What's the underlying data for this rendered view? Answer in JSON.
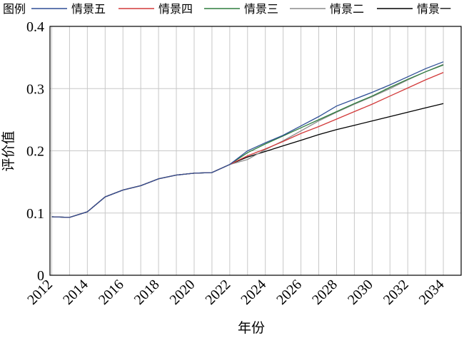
{
  "chart_data": {
    "type": "line",
    "x": [
      2012,
      2013,
      2014,
      2015,
      2016,
      2017,
      2018,
      2019,
      2020,
      2021,
      2022,
      2023,
      2024,
      2025,
      2026,
      2027,
      2028,
      2029,
      2030,
      2031,
      2032,
      2033,
      2034
    ],
    "xlim": [
      2011.9,
      2035.0
    ],
    "ylim": [
      0,
      0.4
    ],
    "x_ticks": [
      "2012",
      "2014",
      "2016",
      "2018",
      "2020",
      "2022",
      "2024",
      "2026",
      "2028",
      "2030",
      "2032",
      "2034"
    ],
    "y_ticks": [
      "0",
      "0.1",
      "0.2",
      "0.3",
      "0.4"
    ],
    "xlabel": "年份",
    "ylabel": "评价值",
    "grid": true,
    "legend_position": "top",
    "legend_title": "图例",
    "series": [
      {
        "name": "情景五",
        "color": "#2f4f96",
        "values": [
          0.094,
          0.093,
          0.102,
          0.126,
          0.137,
          0.144,
          0.155,
          0.161,
          0.164,
          0.165,
          0.178,
          0.2,
          0.213,
          0.225,
          0.24,
          0.255,
          0.272,
          0.283,
          0.294,
          0.306,
          0.319,
          0.332,
          0.343
        ]
      },
      {
        "name": "情景四",
        "color": "#d23a3a",
        "values": [
          0.094,
          0.093,
          0.102,
          0.126,
          0.137,
          0.144,
          0.155,
          0.161,
          0.164,
          0.165,
          0.178,
          0.192,
          0.203,
          0.215,
          0.228,
          0.239,
          0.251,
          0.263,
          0.275,
          0.288,
          0.301,
          0.314,
          0.326
        ]
      },
      {
        "name": "情景三",
        "color": "#2e7d3e",
        "values": [
          0.094,
          0.093,
          0.102,
          0.126,
          0.137,
          0.144,
          0.155,
          0.161,
          0.164,
          0.165,
          0.178,
          0.197,
          0.211,
          0.224,
          0.237,
          0.25,
          0.263,
          0.276,
          0.288,
          0.302,
          0.315,
          0.327,
          0.338
        ]
      },
      {
        "name": "情景二",
        "color": "#8c8c8c",
        "values": [
          0.094,
          0.093,
          0.102,
          0.126,
          0.137,
          0.144,
          0.155,
          0.161,
          0.164,
          0.165,
          0.178,
          0.186,
          0.202,
          0.216,
          0.232,
          0.248,
          0.262,
          0.275,
          0.287,
          0.3,
          0.314,
          0.327,
          0.339
        ]
      },
      {
        "name": "情景一",
        "color": "#000000",
        "values": [
          0.094,
          0.093,
          0.102,
          0.126,
          0.137,
          0.144,
          0.155,
          0.161,
          0.164,
          0.165,
          0.178,
          0.19,
          0.199,
          0.208,
          0.217,
          0.226,
          0.234,
          0.241,
          0.248,
          0.255,
          0.262,
          0.269,
          0.276
        ]
      }
    ]
  }
}
